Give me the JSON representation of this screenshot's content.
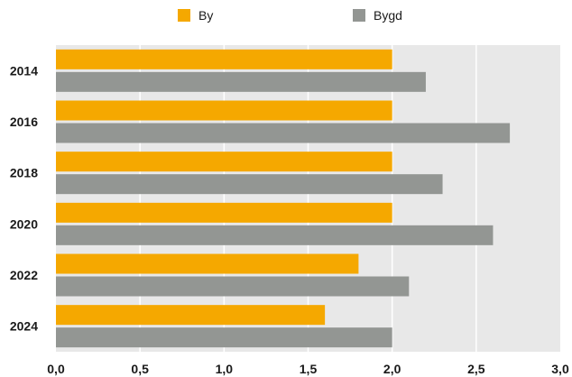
{
  "chart_data": {
    "type": "bar",
    "orientation": "horizontal",
    "categories": [
      "2014",
      "2016",
      "2018",
      "2020",
      "2022",
      "2024"
    ],
    "series": [
      {
        "name": "By",
        "color": "#f5a800",
        "values": [
          2.0,
          2.0,
          2.0,
          2.0,
          1.8,
          1.6
        ]
      },
      {
        "name": "Bygd",
        "color": "#939693",
        "values": [
          2.2,
          2.7,
          2.3,
          2.6,
          2.1,
          2.0
        ]
      }
    ],
    "xlim": [
      0,
      3.0
    ],
    "xticks": [
      "0,0",
      "0,5",
      "1,0",
      "1,5",
      "2,0",
      "2,5",
      "3,0"
    ],
    "title": "",
    "xlabel": "",
    "ylabel": "",
    "grid": "vertical",
    "legend": "top-center",
    "plot_background": "#e8e8e8"
  }
}
